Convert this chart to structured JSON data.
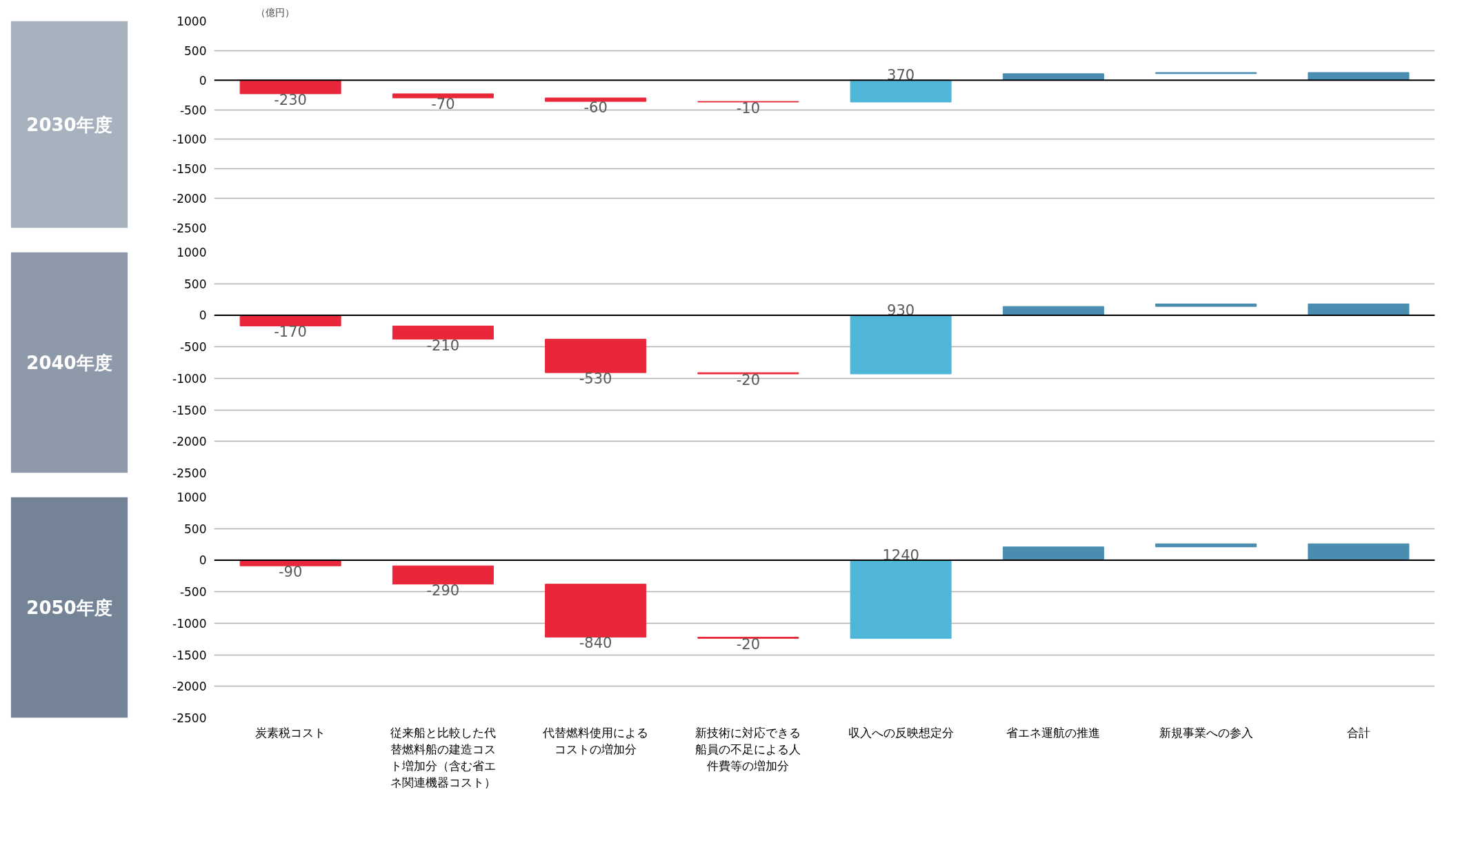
{
  "chart_data": [
    {
      "type": "bar",
      "title": "2030年度",
      "ylabel": "（億円）",
      "tick_labels": "y",
      "grid": "y",
      "categories": [
        "炭素税コスト",
        "従来船と比較した代替燃料船の建造コスト増加分（含む省エネ関連機器コスト）",
        "代替燃料使用によるコストの増加分",
        "新技術に対応できる船員の不足による人件費等の増加分",
        "収入への反映想定分",
        "省エネ運航の推進",
        "新規事業への参入",
        "合計"
      ],
      "values": [
        -230,
        -70,
        -60,
        -10,
        370,
        110,
        20,
        130
      ],
      "base": [
        0,
        -230,
        -300,
        -360,
        -370,
        0,
        110,
        0
      ],
      "colors": [
        "#e8283a",
        "#e8283a",
        "#e8283a",
        "#e8283a",
        "#4fb6d8",
        "#4a8db0",
        "#4a8db0",
        "#4a8db0"
      ],
      "value_labels": [
        "-230",
        "-70",
        "-60",
        "-10",
        "370",
        null,
        null,
        null
      ],
      "ylim": [
        -2500,
        1000
      ],
      "yticks": [
        1000,
        500,
        0,
        -500,
        -1000,
        -1500,
        -2000,
        -2500
      ],
      "ref_lines": [
        {
          "axis": "y",
          "value": 0,
          "color": "#000000"
        }
      ]
    },
    {
      "type": "bar",
      "title": "2040年度",
      "tick_labels": "y",
      "grid": "y",
      "categories": [
        "炭素税コスト",
        "従来船と比較した代替燃料船の建造コスト増加分（含む省エネ関連機器コスト）",
        "代替燃料使用によるコストの増加分",
        "新技術に対応できる船員の不足による人件費等の増加分",
        "収入への反映想定分",
        "省エネ運航の推進",
        "新規事業への参入",
        "合計"
      ],
      "values": [
        -170,
        -210,
        -530,
        -20,
        930,
        140,
        40,
        180
      ],
      "base": [
        0,
        -170,
        -380,
        -910,
        -930,
        0,
        140,
        0
      ],
      "colors": [
        "#e8283a",
        "#e8283a",
        "#e8283a",
        "#e8283a",
        "#4fb6d8",
        "#4a8db0",
        "#4a8db0",
        "#4a8db0"
      ],
      "value_labels": [
        "-170",
        "-210",
        "-530",
        "-20",
        "930",
        null,
        null,
        null
      ],
      "ylim": [
        -2500,
        1000
      ],
      "yticks": [
        1000,
        500,
        0,
        -500,
        -1000,
        -1500,
        -2000,
        -2500
      ],
      "ref_lines": [
        {
          "axis": "y",
          "value": 0,
          "color": "#000000"
        }
      ]
    },
    {
      "type": "bar",
      "title": "2050年度",
      "grid": "y",
      "categories": [
        "炭素税コスト",
        "従来船と比較した代替燃料船の建造コスト増加分（含む省エネ関連機器コスト）",
        "代替燃料使用によるコストの増加分",
        "新技術に対応できる船員の不足による人件費等の増加分",
        "収入への反映想定分",
        "省エネ運航の推進",
        "新規事業への参入",
        "合計"
      ],
      "values": [
        -90,
        -290,
        -840,
        -20,
        1240,
        210,
        50,
        260
      ],
      "base": [
        0,
        -90,
        -380,
        -1220,
        -1240,
        0,
        210,
        0
      ],
      "colors": [
        "#e8283a",
        "#e8283a",
        "#e8283a",
        "#e8283a",
        "#4fb6d8",
        "#4a8db0",
        "#4a8db0",
        "#4a8db0"
      ],
      "value_labels": [
        "-90",
        "-290",
        "-840",
        "-20",
        "1240",
        null,
        null,
        null
      ],
      "ylim": [
        -2500,
        1000
      ],
      "yticks": [
        1000,
        500,
        0,
        -500,
        -1000,
        -1500,
        -2000,
        -2500
      ],
      "ref_lines": [
        {
          "axis": "y",
          "value": 0,
          "color": "#000000"
        }
      ]
    }
  ]
}
